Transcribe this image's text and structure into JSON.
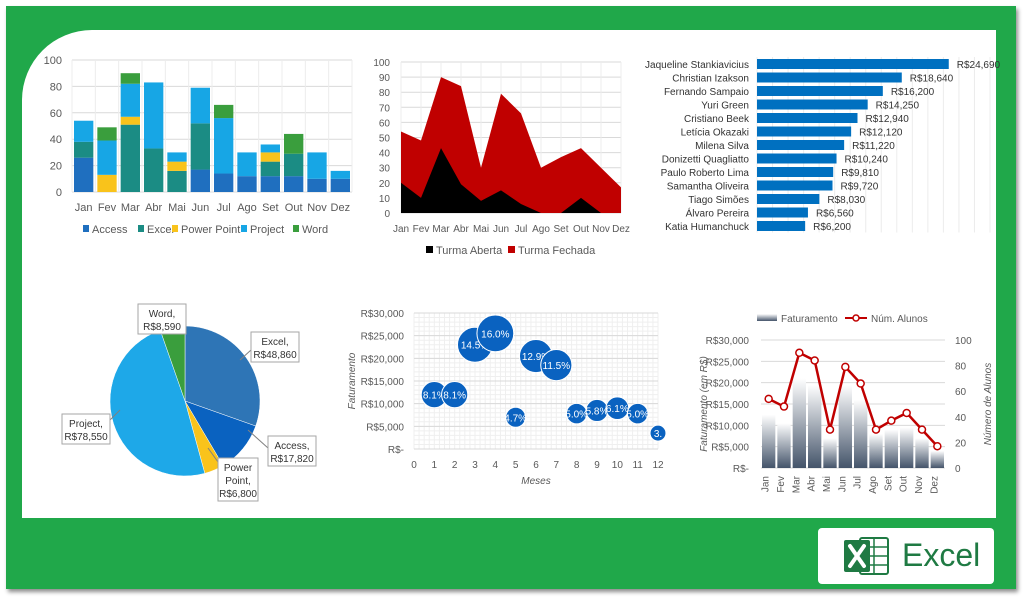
{
  "branding": {
    "label": "Excel",
    "accent": "#20a84a",
    "logo_color": "#1f7a43"
  },
  "chart_data": [
    {
      "id": "stacked",
      "type": "bar",
      "stacked": true,
      "categories": [
        "Jan",
        "Fev",
        "Mar",
        "Abr",
        "Mai",
        "Jun",
        "Jul",
        "Ago",
        "Set",
        "Out",
        "Nov",
        "Dez"
      ],
      "series": [
        {
          "name": "Access",
          "color": "#1f6fbf",
          "values": [
            26,
            0,
            0,
            0,
            0,
            17,
            14,
            12,
            12,
            12,
            10,
            10
          ]
        },
        {
          "name": "Excel",
          "color": "#1b8c84",
          "values": [
            12,
            0,
            51,
            33,
            16,
            35,
            0,
            0,
            11,
            17,
            0,
            0
          ]
        },
        {
          "name": "Power Point",
          "color": "#f9c31b",
          "values": [
            0,
            13,
            6,
            0,
            7,
            0,
            0,
            0,
            7,
            0,
            0,
            0
          ]
        },
        {
          "name": "Project",
          "color": "#17a6e5",
          "values": [
            16,
            26,
            25,
            50,
            7,
            27,
            42,
            18,
            6,
            0,
            20,
            6
          ]
        },
        {
          "name": "Word",
          "color": "#3a9e3d",
          "values": [
            0,
            10,
            8,
            0,
            0,
            0,
            10,
            0,
            0,
            15,
            0,
            0
          ]
        }
      ],
      "ylim": [
        0,
        100
      ],
      "yticks": [
        0,
        20,
        40,
        60,
        80,
        100
      ],
      "grid": true,
      "legend": "bottom"
    },
    {
      "id": "area",
      "type": "area",
      "categories": [
        "Jan",
        "Fev",
        "Mar",
        "Abr",
        "Mai",
        "Jun",
        "Jul",
        "Ago",
        "Set",
        "Out",
        "Nov",
        "Dez"
      ],
      "series": [
        {
          "name": "Turma Aberta",
          "color": "#000000",
          "values": [
            20,
            10,
            43,
            19,
            8,
            15,
            6,
            0,
            0,
            10,
            0,
            0
          ]
        },
        {
          "name": "Turma Fechada",
          "color": "#c00000",
          "values": [
            54,
            48,
            90,
            84,
            30,
            79,
            66,
            30,
            37,
            43,
            30,
            17
          ]
        }
      ],
      "ylim": [
        0,
        100
      ],
      "yticks": [
        0,
        10,
        20,
        30,
        40,
        50,
        60,
        70,
        80,
        90,
        100
      ],
      "grid": true,
      "legend": "bottom"
    },
    {
      "id": "hbar",
      "type": "bar",
      "orientation": "horizontal",
      "color": "#0070c0",
      "categories": [
        "Jaqueline Stankiavicius",
        "Christian Izakson",
        "Fernando Sampaio",
        "Yuri Green",
        "Cristiano Beek",
        "Letícia Okazaki",
        "Milena Silva",
        "Donizetti Quagliatto",
        "Paulo Roberto Lima",
        "Samantha Oliveira",
        "Tiago Simões",
        "Álvaro Pereira",
        "Katia Humanchuck"
      ],
      "values": [
        24690,
        18640,
        16200,
        14250,
        12940,
        12120,
        11220,
        10240,
        9810,
        9720,
        8030,
        6560,
        6200
      ],
      "labels": [
        "R$24,690",
        "R$18,640",
        "R$16,200",
        "R$14,250",
        "R$12,940",
        "R$12,120",
        "R$11,220",
        "R$10,240",
        "R$9,810",
        "R$9,720",
        "R$8,030",
        "R$6,560",
        "R$6,200"
      ],
      "xlim": [
        0,
        30000
      ],
      "grid": true
    },
    {
      "id": "pie",
      "type": "pie",
      "slices": [
        {
          "name": "Excel",
          "value": 48860,
          "label": "R$48,860",
          "color": "#2e75b6"
        },
        {
          "name": "Access",
          "value": 17820,
          "label": "R$17,820",
          "color": "#0a62c0"
        },
        {
          "name": "Power Point",
          "value": 6800,
          "label": "R$6,800",
          "color": "#f9c31b"
        },
        {
          "name": "Project",
          "value": 78550,
          "label": "R$78,550",
          "color": "#1ea8e8"
        },
        {
          "name": "Word",
          "value": 8590,
          "label": "R$8,590",
          "color": "#3a9e3d"
        }
      ],
      "label_texts": {
        "excel": [
          "Excel,",
          "R$48,860"
        ],
        "access": [
          "Access,",
          "R$17,820"
        ],
        "powerpoint": [
          "Power",
          "Point,",
          "R$6,800"
        ],
        "project": [
          "Project,",
          "R$78,550"
        ],
        "word": [
          "Word,",
          "R$8,590"
        ]
      }
    },
    {
      "id": "bubble",
      "type": "scatter",
      "bubble": true,
      "color": "#0a62c0",
      "points": [
        {
          "x": 1,
          "y": 12000,
          "label": "8.1%"
        },
        {
          "x": 2,
          "y": 12000,
          "label": "8.1%"
        },
        {
          "x": 3,
          "y": 23000,
          "label": "14.5%"
        },
        {
          "x": 4,
          "y": 25500,
          "label": "16.0%"
        },
        {
          "x": 5,
          "y": 7000,
          "label": "4.7%"
        },
        {
          "x": 6,
          "y": 20500,
          "label": "12.9%"
        },
        {
          "x": 7,
          "y": 18500,
          "label": "11.5%"
        },
        {
          "x": 8,
          "y": 7800,
          "label": "5.0%"
        },
        {
          "x": 9,
          "y": 8500,
          "label": "5.8%"
        },
        {
          "x": 10,
          "y": 9000,
          "label": "6.1%"
        },
        {
          "x": 11,
          "y": 7800,
          "label": "5.0%"
        },
        {
          "x": 12,
          "y": 3500,
          "label": "3."
        }
      ],
      "xlabel": "Meses",
      "ylabel": "Faturamento",
      "xlim": [
        0,
        12
      ],
      "ylim": [
        0,
        30000
      ],
      "xticks": [
        "0",
        "1",
        "2",
        "3",
        "4",
        "5",
        "6",
        "7",
        "8",
        "9",
        "10",
        "11",
        "12"
      ],
      "yticks": [
        "R$-",
        "R$5,000",
        "R$10,000",
        "R$15,000",
        "R$20,000",
        "R$25,000",
        "R$30,000"
      ],
      "grid": true
    },
    {
      "id": "combo",
      "type": "bar",
      "combo_line": true,
      "categories": [
        "Jan",
        "Fev",
        "Mar",
        "Abr",
        "Mai",
        "Jun",
        "Jul",
        "Ago",
        "Set",
        "Out",
        "Nov",
        "Dez"
      ],
      "series": [
        {
          "name": "Faturamento",
          "kind": "column",
          "color": "#44546a",
          "values": [
            12500,
            10500,
            21000,
            19500,
            7000,
            19500,
            16000,
            8000,
            9000,
            9500,
            7000,
            4000
          ]
        },
        {
          "name": "Núm. Alunos",
          "kind": "line",
          "color": "#c00000",
          "values": [
            54,
            48,
            90,
            84,
            30,
            79,
            66,
            30,
            37,
            43,
            30,
            17
          ]
        }
      ],
      "ylabel": "Faturamento (em R$)",
      "y2label": "Número de Alunos",
      "ylim": [
        0,
        30000
      ],
      "y2lim": [
        0,
        100
      ],
      "yticks": [
        "R$-",
        "R$5,000",
        "R$10,000",
        "R$15,000",
        "R$20,000",
        "R$25,000",
        "R$30,000"
      ],
      "y2ticks": [
        "0",
        "20",
        "40",
        "60",
        "80",
        "100"
      ],
      "grid": true,
      "legend": "top"
    }
  ]
}
